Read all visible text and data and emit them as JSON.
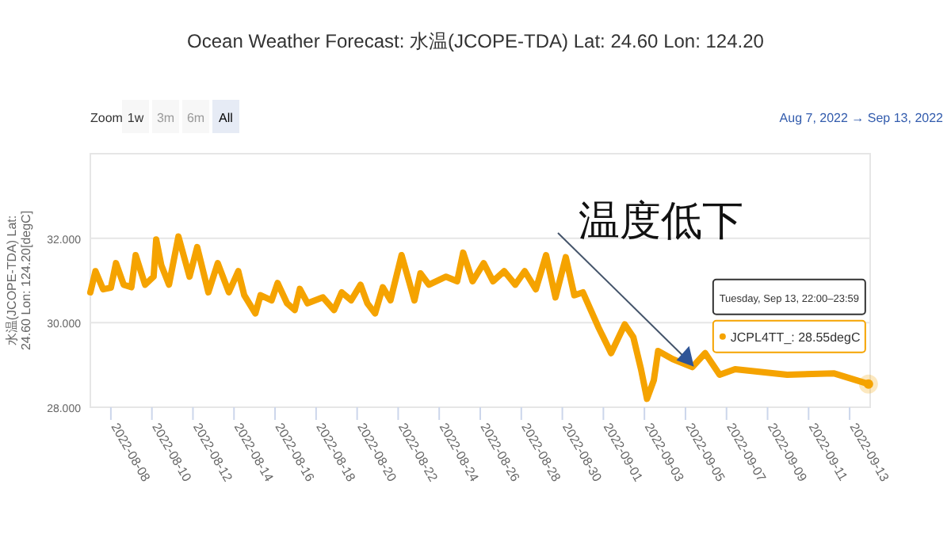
{
  "chart_data": {
    "type": "line",
    "title": "Ocean Weather Forecast: 水温(JCOPE-TDA) Lat: 24.60 Lon: 124.20",
    "ylabel": "水温(JCOPE-TDA) Lat:\n24.60 Lon: 124.20[degC]",
    "annotations": [
      {
        "text": "温度低下",
        "x": "2022-09-05T08:00",
        "y": 29.0
      },
      "Zoom",
      "1w",
      "3m",
      "6m",
      "All",
      "Aug 7, 2022 → Sep 13, 2022",
      "JCPL4TT_: 28.55degC",
      "Tuesday, Sep 13, 22:00–23:59"
    ],
    "x": [
      "2022-08-07T00:00",
      "2022-08-07T06:00",
      "2022-08-07T15:00",
      "2022-08-08T00:00",
      "2022-08-08T06:00",
      "2022-08-08T15:00",
      "2022-08-09T00:00",
      "2022-08-09T05:00",
      "2022-08-09T16:00",
      "2022-08-10T02:00",
      "2022-08-10T05:00",
      "2022-08-10T11:00",
      "2022-08-10T20:00",
      "2022-08-11T07:00",
      "2022-08-11T20:00",
      "2022-08-12T05:00",
      "2022-08-12T18:00",
      "2022-08-13T05:00",
      "2022-08-13T18:00",
      "2022-08-14T05:00",
      "2022-08-14T12:00",
      "2022-08-15T01:00",
      "2022-08-15T07:00",
      "2022-08-15T20:00",
      "2022-08-16T03:00",
      "2022-08-16T14:00",
      "2022-08-16T23:00",
      "2022-08-17T05:00",
      "2022-08-17T14:00",
      "2022-08-18T08:00",
      "2022-08-18T21:00",
      "2022-08-19T06:00",
      "2022-08-19T17:00",
      "2022-08-20T04:00",
      "2022-08-20T12:00",
      "2022-08-20T21:00",
      "2022-08-21T06:00",
      "2022-08-21T15:00",
      "2022-08-22T04:00",
      "2022-08-22T19:00",
      "2022-08-23T02:00",
      "2022-08-23T12:00",
      "2022-08-24T08:00",
      "2022-08-24T21:00",
      "2022-08-25T04:00",
      "2022-08-25T15:00",
      "2022-08-26T04:00",
      "2022-08-26T15:00",
      "2022-08-27T04:00",
      "2022-08-27T17:00",
      "2022-08-28T04:00",
      "2022-08-28T17:00",
      "2022-08-29T05:00",
      "2022-08-29T16:00",
      "2022-08-30T04:00",
      "2022-08-30T14:00",
      "2022-08-31T00:00",
      "2022-08-31T18:00",
      "2022-09-01T09:00",
      "2022-09-02T01:00",
      "2022-09-02T11:00",
      "2022-09-02T20:00",
      "2022-09-03T03:00",
      "2022-09-03T11:00",
      "2022-09-03T16:00",
      "2022-09-04T09:00",
      "2022-09-05T08:00",
      "2022-09-05T23:00",
      "2022-09-06T16:00",
      "2022-09-07T10:00",
      "2022-09-09T23:00",
      "2022-09-12T06:00",
      "2022-09-13T22:00"
    ],
    "series": [
      {
        "color": "#f5a300",
        "values": [
          30.72,
          31.22,
          30.79,
          30.83,
          31.41,
          30.9,
          30.84,
          31.6,
          30.9,
          31.09,
          31.97,
          31.36,
          30.9,
          32.04,
          31.09,
          31.79,
          30.72,
          31.41,
          30.72,
          31.22,
          30.65,
          30.22,
          30.65,
          30.53,
          30.94,
          30.46,
          30.3,
          30.8,
          30.46,
          30.6,
          30.3,
          30.72,
          30.53,
          30.9,
          30.46,
          30.22,
          30.84,
          30.53,
          31.6,
          30.53,
          31.17,
          30.9,
          31.09,
          30.98,
          31.66,
          30.98,
          31.41,
          30.98,
          31.22,
          30.9,
          31.22,
          30.79,
          31.6,
          30.6,
          31.55,
          30.65,
          30.72,
          29.9,
          29.28,
          29.96,
          29.66,
          28.9,
          28.2,
          28.64,
          29.33,
          29.14,
          28.95,
          29.28,
          28.77,
          28.9,
          28.77,
          28.8,
          28.55
        ]
      }
    ],
    "xlim": [
      "2022-08-07",
      "2022-09-14"
    ],
    "xticks": [
      "2022-08-08",
      "2022-08-10",
      "2022-08-12",
      "2022-08-14",
      "2022-08-16",
      "2022-08-18",
      "2022-08-20",
      "2022-08-22",
      "2022-08-24",
      "2022-08-26",
      "2022-08-28",
      "2022-08-30",
      "2022-09-01",
      "2022-09-03",
      "2022-09-05",
      "2022-09-07",
      "2022-09-09",
      "2022-09-11",
      "2022-09-13"
    ],
    "ylim": [
      28,
      34
    ],
    "yticks": [
      {
        "value": 28,
        "label": "28.000"
      },
      {
        "value": 30,
        "label": "30.000"
      },
      {
        "value": 32,
        "label": "32.000"
      }
    ],
    "grid": "y",
    "marker": "none",
    "line_style": "solid"
  }
}
